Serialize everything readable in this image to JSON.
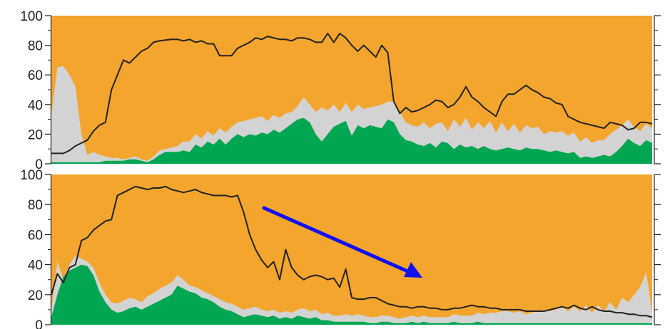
{
  "colors": {
    "background_area": "#f4a52e",
    "gray_area": "#d3d3d3",
    "green_area": "#00a651",
    "line": "#222222",
    "arrow": "#1010f0"
  },
  "chart_data": [
    {
      "type": "area",
      "xlim": [
        0,
        100
      ],
      "ylim": [
        0,
        100
      ],
      "yticks": [
        0,
        20,
        40,
        60,
        80,
        100
      ],
      "ytick_labels": [
        "0",
        "20",
        "40",
        "60",
        "80",
        "100"
      ],
      "x": [
        0,
        1,
        2,
        3,
        4,
        5,
        6,
        7,
        8,
        9,
        10,
        11,
        12,
        13,
        14,
        15,
        16,
        17,
        18,
        19,
        20,
        21,
        22,
        23,
        24,
        25,
        26,
        27,
        28,
        29,
        30,
        31,
        32,
        33,
        34,
        35,
        36,
        37,
        38,
        39,
        40,
        41,
        42,
        43,
        44,
        45,
        46,
        47,
        48,
        49,
        50,
        51,
        52,
        53,
        54,
        55,
        56,
        57,
        58,
        59,
        60,
        61,
        62,
        63,
        64,
        65,
        66,
        67,
        68,
        69,
        70,
        71,
        72,
        73,
        74,
        75,
        76,
        77,
        78,
        79,
        80,
        81,
        82,
        83,
        84,
        85,
        86,
        87,
        88,
        89,
        90,
        91,
        92,
        93,
        94,
        95,
        96,
        97,
        98,
        99,
        100
      ],
      "series": [
        {
          "role": "green-area",
          "values": [
            1,
            1,
            1,
            1,
            1,
            1,
            1,
            1,
            1,
            2,
            2,
            2,
            2,
            3,
            3,
            2,
            1,
            3,
            6,
            8,
            8,
            8,
            9,
            8,
            13,
            11,
            15,
            13,
            17,
            13,
            17,
            20,
            18,
            20,
            19,
            21,
            20,
            23,
            21,
            24,
            27,
            30,
            31,
            28,
            20,
            15,
            20,
            25,
            27,
            29,
            19,
            26,
            24,
            26,
            25,
            24,
            30,
            28,
            20,
            16,
            15,
            13,
            12,
            14,
            11,
            15,
            14,
            10,
            13,
            11,
            12,
            10,
            12,
            10,
            9,
            10,
            11,
            10,
            9,
            11,
            10,
            10,
            9,
            8,
            9,
            8,
            7,
            8,
            4,
            5,
            4,
            5,
            6,
            5,
            8,
            12,
            17,
            14,
            12,
            16,
            14
          ]
        },
        {
          "role": "gray-area-top",
          "values": [
            33,
            65,
            66,
            60,
            52,
            20,
            6,
            8,
            6,
            5,
            4,
            4,
            3,
            4,
            5,
            3,
            2,
            5,
            9,
            10,
            11,
            12,
            15,
            15,
            20,
            17,
            22,
            19,
            24,
            21,
            25,
            28,
            29,
            30,
            31,
            32,
            29,
            33,
            31,
            34,
            35,
            39,
            45,
            40,
            35,
            38,
            36,
            40,
            35,
            41,
            35,
            40,
            37,
            38,
            39,
            40,
            42,
            42,
            35,
            28,
            26,
            25,
            28,
            24,
            27,
            28,
            22,
            30,
            25,
            31,
            23,
            28,
            24,
            29,
            21,
            28,
            22,
            27,
            21,
            26,
            24,
            25,
            20,
            22,
            21,
            22,
            19,
            21,
            15,
            18,
            14,
            16,
            16,
            20,
            23,
            26,
            30,
            25,
            22,
            27,
            24
          ]
        },
        {
          "role": "line",
          "values": [
            7,
            7,
            7,
            9,
            12,
            14,
            16,
            22,
            26,
            28,
            50,
            60,
            70,
            68,
            72,
            76,
            78,
            82,
            83,
            83.5,
            84,
            84,
            83,
            84,
            82,
            83,
            81,
            81,
            73,
            73,
            73,
            78,
            80,
            82,
            85,
            84,
            86,
            85,
            84,
            84,
            83,
            85,
            85,
            84,
            82,
            82,
            88,
            82,
            88,
            85,
            80,
            76,
            80,
            76,
            72,
            80,
            75,
            42,
            34,
            38,
            35,
            36,
            38,
            40,
            43,
            42,
            38,
            40,
            45,
            52,
            45,
            42,
            38,
            35,
            32,
            42,
            47,
            47,
            50,
            53,
            50,
            48,
            45,
            44,
            41,
            40,
            32,
            30,
            28,
            27,
            26,
            25,
            24,
            28,
            27,
            26,
            23,
            24,
            28,
            28,
            27
          ]
        }
      ]
    },
    {
      "type": "area",
      "xlim": [
        0,
        100
      ],
      "ylim": [
        0,
        100
      ],
      "yticks": [
        0,
        20,
        40,
        60,
        80,
        100
      ],
      "ytick_labels": [
        "0",
        "20",
        "40",
        "60",
        "80",
        "100"
      ],
      "x": [
        0,
        1,
        2,
        3,
        4,
        5,
        6,
        7,
        8,
        9,
        10,
        11,
        12,
        13,
        14,
        15,
        16,
        17,
        18,
        19,
        20,
        21,
        22,
        23,
        24,
        25,
        26,
        27,
        28,
        29,
        30,
        31,
        32,
        33,
        34,
        35,
        36,
        37,
        38,
        39,
        40,
        41,
        42,
        43,
        44,
        45,
        46,
        47,
        48,
        49,
        50,
        51,
        52,
        53,
        54,
        55,
        56,
        57,
        58,
        59,
        60,
        61,
        62,
        63,
        64,
        65,
        66,
        67,
        68,
        69,
        70,
        71,
        72,
        73,
        74,
        75,
        76,
        77,
        78,
        79,
        80,
        81,
        82,
        83,
        84,
        85,
        86,
        87,
        88,
        89,
        90,
        91,
        92,
        93,
        94,
        95,
        96,
        97,
        98,
        99,
        100
      ],
      "series": [
        {
          "role": "green-area",
          "values": [
            5,
            20,
            32,
            36,
            38,
            40,
            39,
            33,
            22,
            15,
            10,
            8,
            9,
            11,
            12,
            10,
            12,
            14,
            16,
            18,
            20,
            26,
            24,
            22,
            21,
            18,
            17,
            15,
            12,
            10,
            9,
            7,
            5,
            6,
            7,
            6,
            5,
            6,
            4,
            5,
            4,
            6,
            5,
            4,
            5,
            3,
            3,
            2,
            2,
            2,
            2,
            2,
            2,
            1,
            1,
            2,
            2,
            1,
            1,
            1,
            2,
            1,
            2,
            1,
            1,
            1,
            1,
            2,
            1,
            1,
            1,
            2,
            1,
            1,
            1,
            1,
            1,
            1,
            1,
            1,
            1,
            1,
            1,
            1,
            1,
            1,
            1,
            1,
            1,
            1,
            1,
            1,
            1,
            1,
            1,
            1,
            1,
            1,
            1,
            1,
            1
          ]
        },
        {
          "role": "gray-area-top",
          "values": [
            10,
            42,
            30,
            40,
            46,
            44,
            42,
            38,
            28,
            20,
            15,
            14,
            16,
            18,
            17,
            15,
            19,
            21,
            24,
            26,
            28,
            33,
            30,
            26,
            25,
            23,
            21,
            19,
            17,
            15,
            14,
            12,
            10,
            11,
            12,
            10,
            9,
            10,
            8,
            9,
            8,
            10,
            11,
            9,
            10,
            7,
            8,
            6,
            6,
            7,
            6,
            7,
            6,
            5,
            5,
            6,
            6,
            5,
            4,
            5,
            6,
            5,
            6,
            5,
            5,
            5,
            5,
            7,
            6,
            6,
            6,
            8,
            7,
            8,
            8,
            9,
            9,
            8,
            9,
            7,
            8,
            9,
            10,
            9,
            10,
            12,
            9,
            12,
            9,
            13,
            8,
            13,
            9,
            15,
            10,
            18,
            15,
            20,
            25,
            35,
            8
          ]
        },
        {
          "role": "line",
          "values": [
            20,
            34,
            28,
            38,
            40,
            56,
            58,
            63,
            66,
            69,
            70,
            86,
            88,
            90,
            92,
            91,
            90,
            91,
            91,
            92,
            90,
            89,
            88,
            89,
            90,
            88,
            87,
            86,
            86,
            86,
            85,
            86,
            75,
            60,
            50,
            43,
            38,
            42,
            30,
            50,
            38,
            33,
            30,
            32,
            33,
            32,
            30,
            31,
            25,
            37,
            18,
            17,
            17,
            18,
            18,
            16,
            14,
            13,
            12,
            12,
            11,
            12,
            12,
            11,
            11,
            10,
            10,
            11,
            11,
            12,
            13,
            12,
            12,
            11,
            11,
            10,
            10,
            10,
            10,
            9,
            9,
            9,
            9,
            10,
            11,
            12,
            11,
            13,
            11,
            10,
            12,
            10,
            9,
            9,
            8,
            8,
            7,
            7,
            6,
            6,
            5
          ]
        }
      ]
    }
  ]
}
